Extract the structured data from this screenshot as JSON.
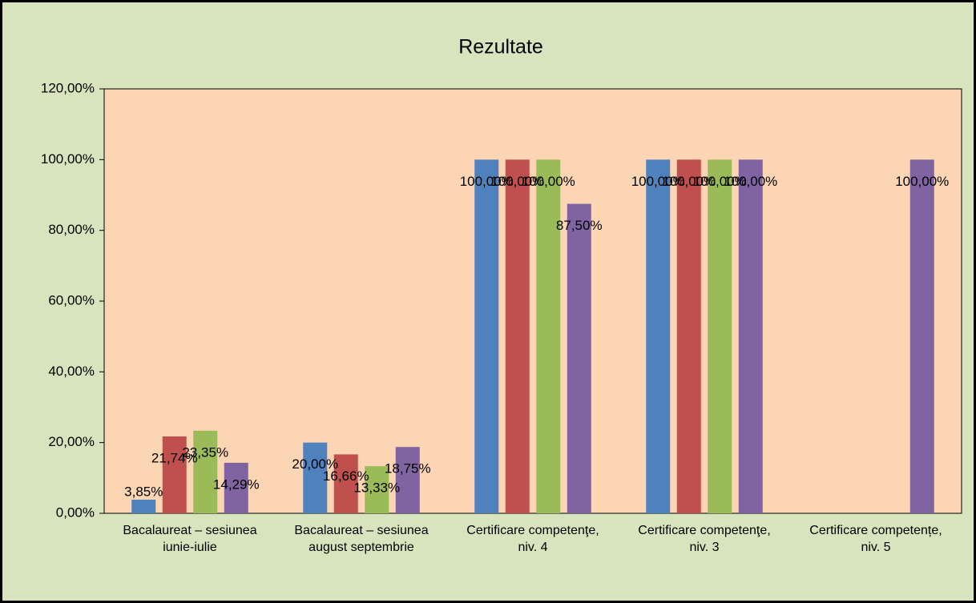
{
  "chart_data": {
    "type": "bar",
    "title": "Rezultate",
    "categories": [
      "Bacalaureat – sesiunea iunie-iulie",
      "Bacalaureat – sesiunea august septembrie",
      "Certificare competenţe, niv. 4",
      "Certificare competenţe, niv. 3",
      "Certificare competențe, niv. 5"
    ],
    "series": [
      {
        "color": "#4f81bd",
        "values": [
          3.85,
          20.0,
          100,
          100,
          null
        ],
        "value_labels": [
          "3,85%",
          "20,00%",
          "100,00%",
          "100,00%",
          null
        ]
      },
      {
        "color": "#c0504d",
        "values": [
          21.74,
          16.66,
          100,
          100,
          null
        ],
        "value_labels": [
          "21,74%",
          "16,66%",
          "100,00%",
          "100,00%",
          null
        ]
      },
      {
        "color": "#9bbb59",
        "values": [
          23.35,
          13.33,
          100,
          100,
          null
        ],
        "value_labels": [
          "23,35%",
          "13,33%",
          "100,00%",
          "100,00%",
          null
        ]
      },
      {
        "color": "#8064a2",
        "values": [
          14.29,
          18.75,
          87.5,
          100,
          100
        ],
        "value_labels": [
          "14,29%",
          "18,75%",
          "87,50%",
          "100,00%",
          "100,00%"
        ]
      }
    ],
    "ylim": [
      0,
      120
    ],
    "yticks": [
      {
        "value": 0,
        "label": "0,00%"
      },
      {
        "value": 20,
        "label": "20,00%"
      },
      {
        "value": 40,
        "label": "40,00%"
      },
      {
        "value": 60,
        "label": "60,00%"
      },
      {
        "value": 80,
        "label": "80,00%"
      },
      {
        "value": 100,
        "label": "100,00%"
      },
      {
        "value": 120,
        "label": "120,00%"
      }
    ],
    "grid": false
  }
}
